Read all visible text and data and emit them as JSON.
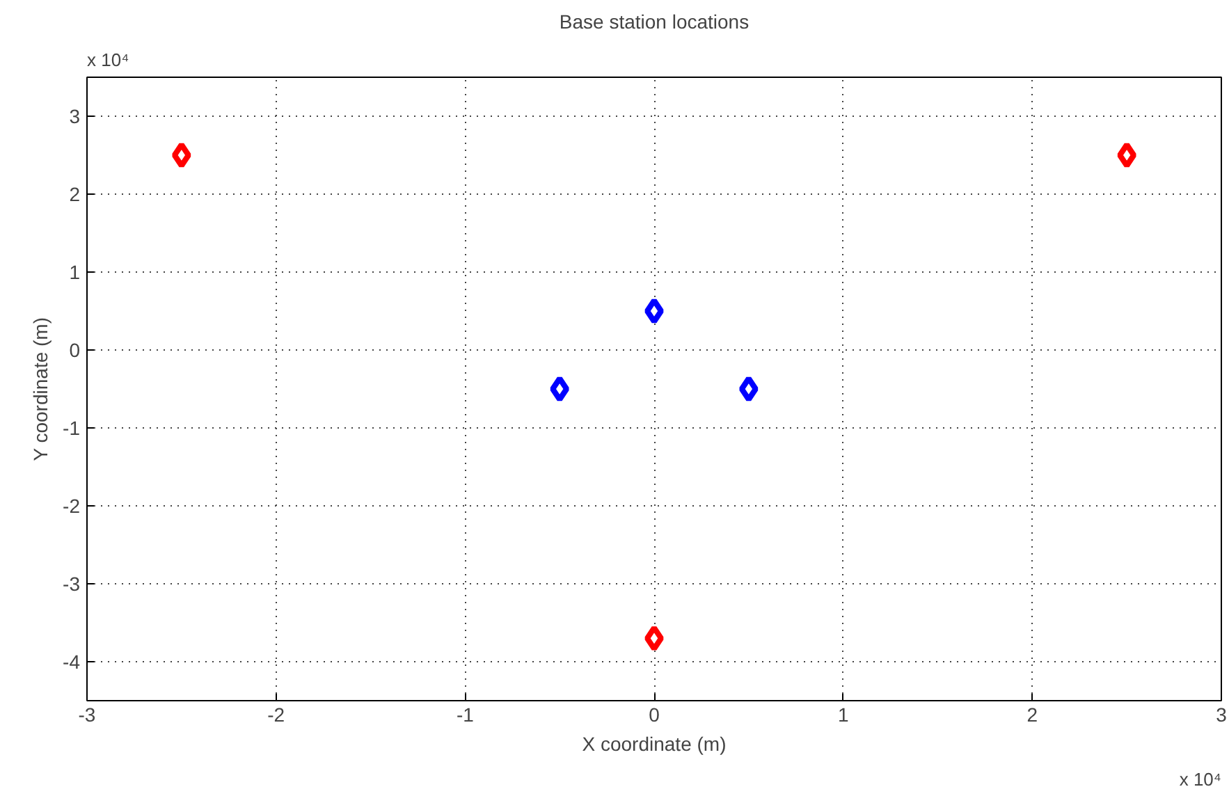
{
  "chart_data": {
    "type": "scatter",
    "title": "Base station locations",
    "xlabel": "X coordinate (m)",
    "ylabel": "Y coordinate (m)",
    "series": [
      {
        "color": "#ff0000",
        "x": [
          -2.5,
          2.5,
          0
        ],
        "values": [
          2.5,
          2.5,
          -3.7
        ]
      },
      {
        "color": "#0000ff",
        "x": [
          -0.5,
          0,
          0.5
        ],
        "values": [
          -0.5,
          0.5,
          -0.5
        ]
      }
    ],
    "xlim": [
      -3,
      3
    ],
    "ylim": [
      -4.5,
      3.5
    ],
    "xticks": [
      -3,
      -2,
      -1,
      0,
      1,
      2,
      3
    ],
    "yticks": [
      -4,
      -3,
      -2,
      -1,
      0,
      1,
      2,
      3
    ],
    "annotations": [
      "x 10⁴",
      "x 10⁴"
    ],
    "grid": true,
    "marker": "diamond"
  }
}
